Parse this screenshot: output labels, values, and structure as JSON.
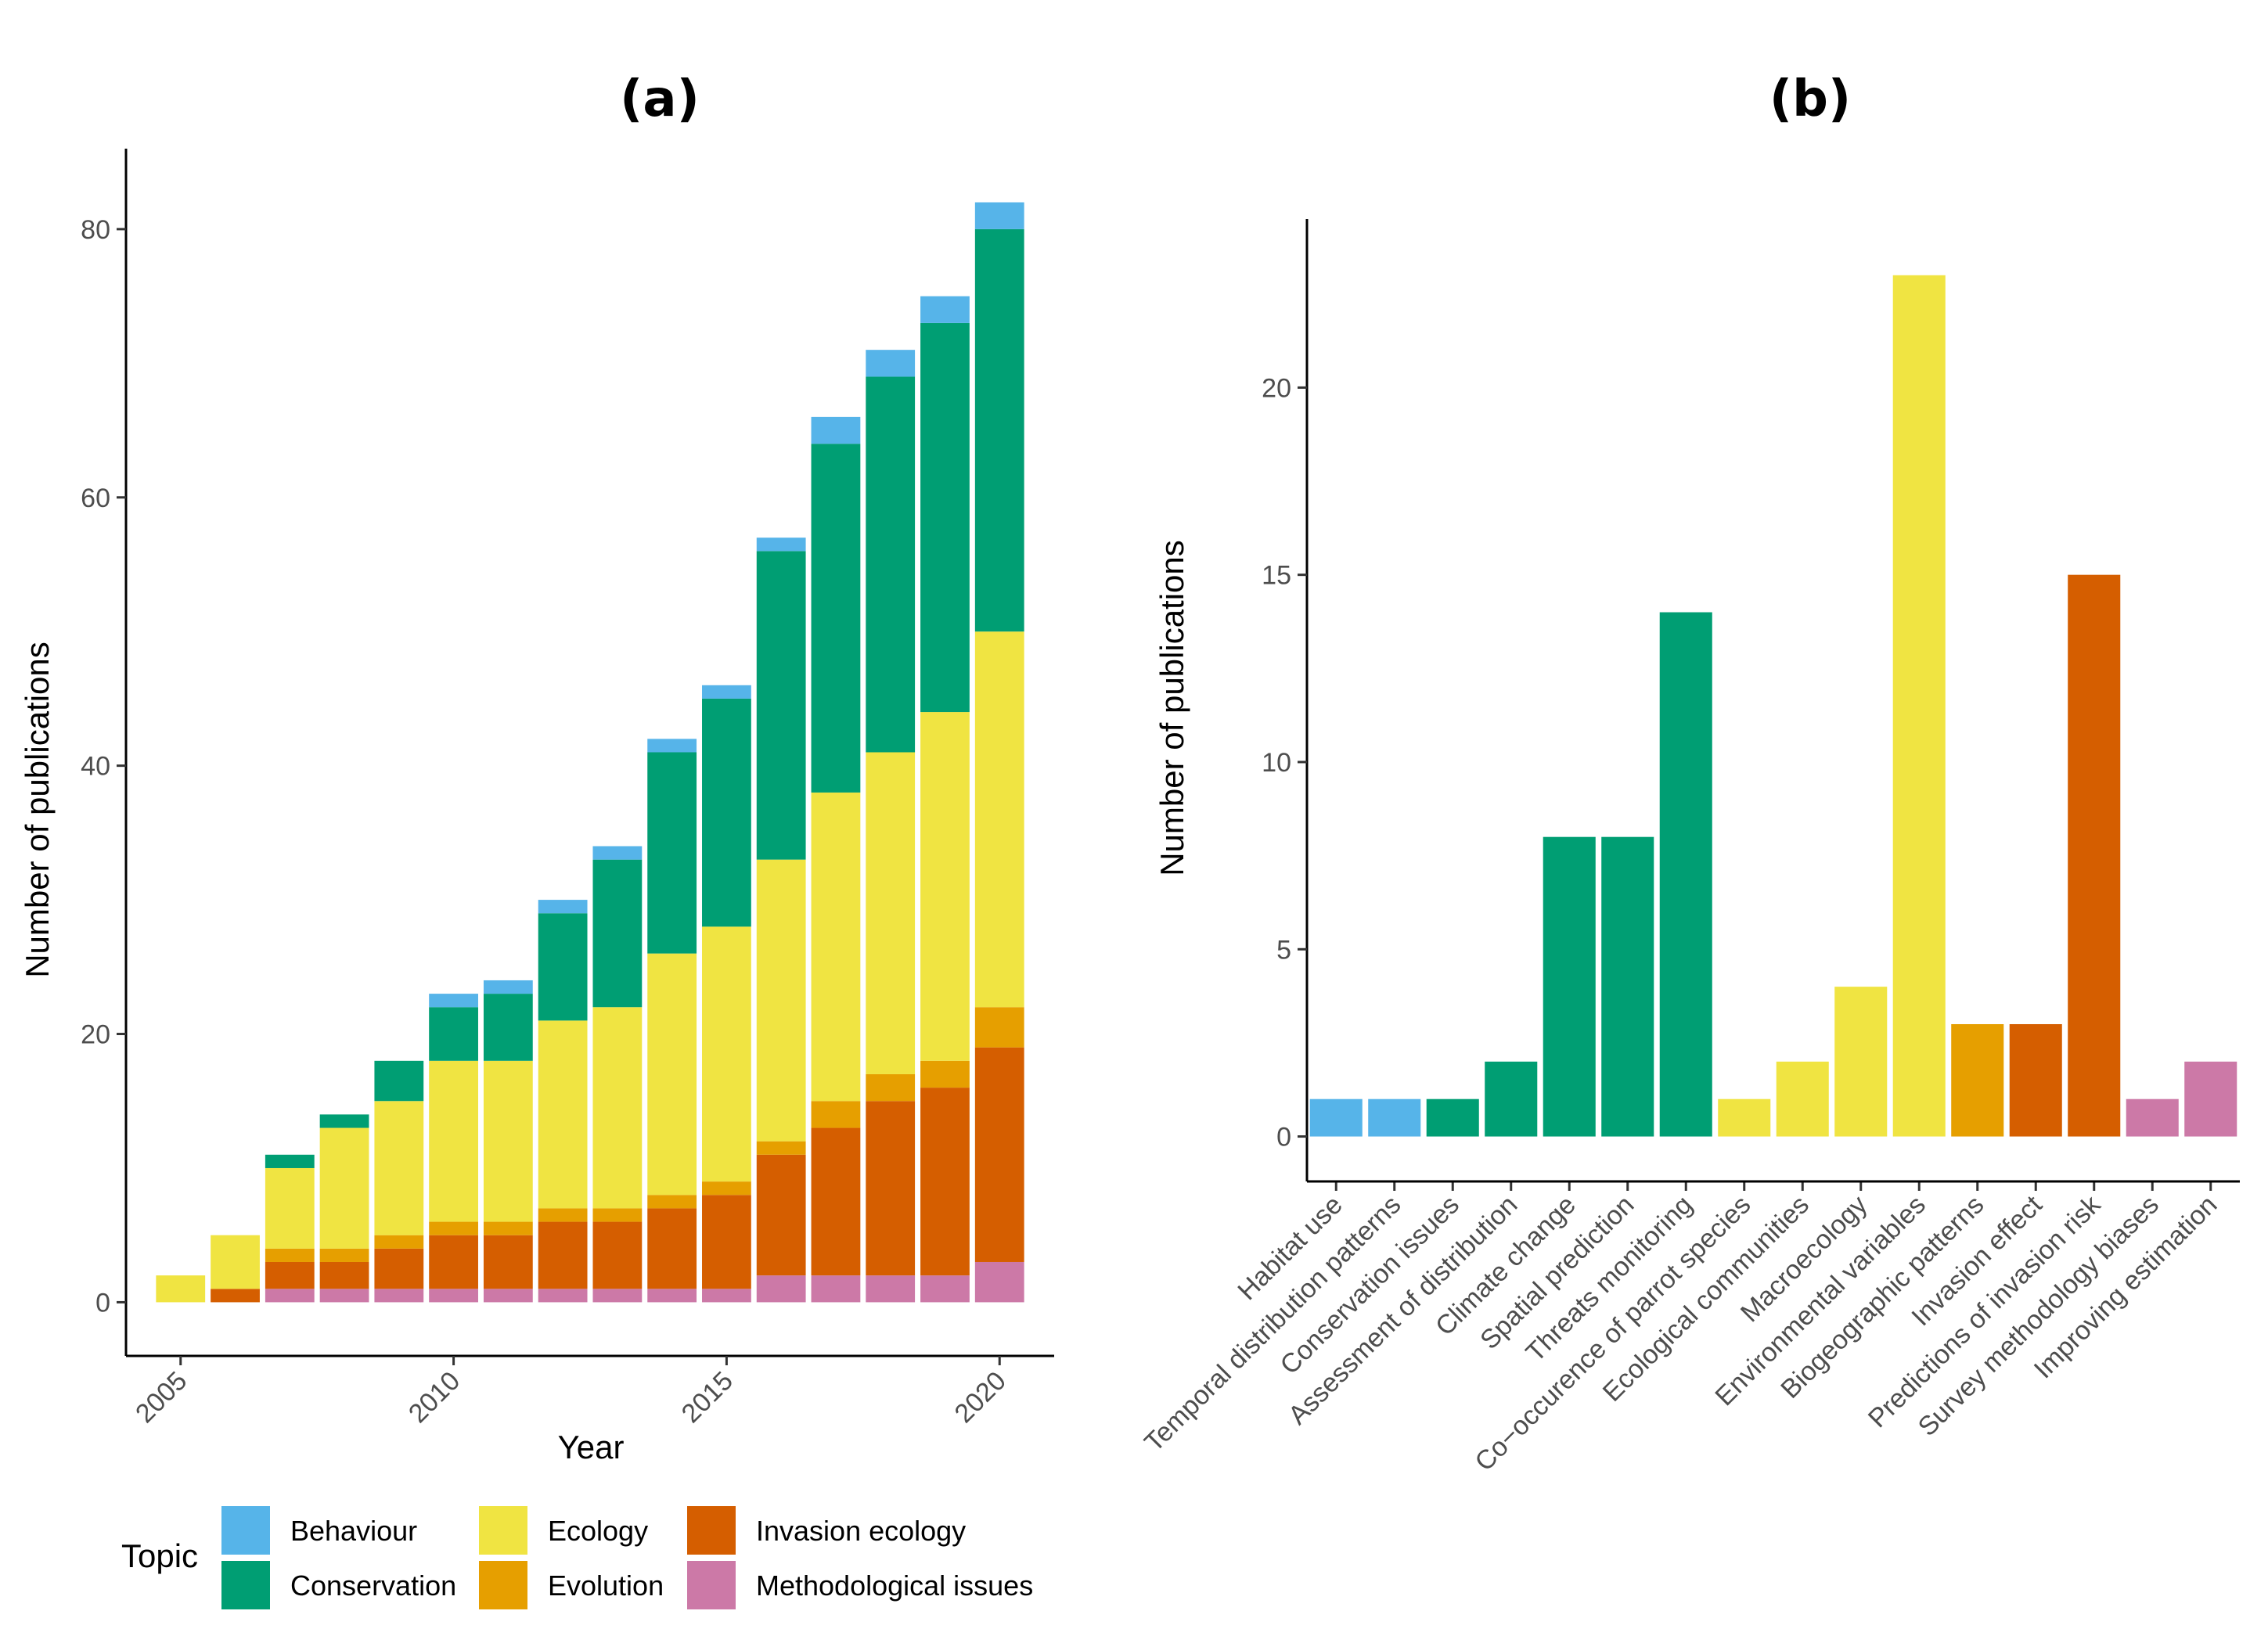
{
  "colors": {
    "Behaviour": "#56B4E9",
    "Conservation": "#009E73",
    "Ecology": "#F0E442",
    "Evolution": "#E69F00",
    "Invasion ecology": "#D55E00",
    "Methodological issues": "#CC79A7"
  },
  "chart_data": [
    {
      "type": "bar",
      "stacked": true,
      "title": "(a)",
      "xlabel": "Year",
      "ylabel": "Number of publications",
      "x": [
        2005,
        2006,
        2007,
        2008,
        2009,
        2010,
        2011,
        2012,
        2013,
        2014,
        2015,
        2016,
        2017,
        2018,
        2019,
        2020
      ],
      "x_ticks": [
        2005,
        2010,
        2015,
        2020
      ],
      "xlim": [
        2004,
        2021
      ],
      "ylim": [
        -4,
        86
      ],
      "y_ticks": [
        0,
        20,
        40,
        60,
        80
      ],
      "series": [
        {
          "name": "Methodological issues",
          "values": [
            0,
            0,
            1,
            1,
            1,
            1,
            1,
            1,
            1,
            1,
            1,
            2,
            2,
            2,
            2,
            3
          ]
        },
        {
          "name": "Invasion ecology",
          "values": [
            0,
            1,
            2,
            2,
            3,
            4,
            4,
            5,
            5,
            6,
            7,
            9,
            11,
            13,
            14,
            16
          ]
        },
        {
          "name": "Evolution",
          "values": [
            0,
            0,
            1,
            1,
            1,
            1,
            1,
            1,
            1,
            1,
            1,
            1,
            2,
            2,
            2,
            3
          ]
        },
        {
          "name": "Ecology",
          "values": [
            2,
            4,
            6,
            9,
            10,
            12,
            12,
            14,
            15,
            18,
            19,
            21,
            23,
            24,
            26,
            28
          ]
        },
        {
          "name": "Conservation",
          "values": [
            0,
            0,
            1,
            1,
            3,
            4,
            5,
            8,
            11,
            15,
            17,
            23,
            26,
            28,
            29,
            30
          ]
        },
        {
          "name": "Behaviour",
          "values": [
            0,
            0,
            0,
            0,
            0,
            1,
            1,
            1,
            1,
            1,
            1,
            1,
            2,
            2,
            2,
            2
          ]
        }
      ],
      "legend": {
        "title": "Topic",
        "position": "bottom",
        "entries": [
          "Behaviour",
          "Conservation",
          "Ecology",
          "Evolution",
          "Invasion ecology",
          "Methodological issues"
        ]
      }
    },
    {
      "type": "bar",
      "title": "(b)",
      "xlabel": "",
      "ylabel": "Number of publications",
      "ylim": [
        -1.2,
        24.5
      ],
      "y_ticks": [
        0,
        5,
        10,
        15,
        20
      ],
      "categories": [
        "Habitat use",
        "Temporal distribution patterns",
        "Conservation issues",
        "Assessment of distribution",
        "Climate change",
        "Spatial prediction",
        "Threats monitoring",
        "Co−occurence of parrot species",
        "Ecological communities",
        "Macroecology",
        "Environmental variables",
        "Biogeographic patterns",
        "Invasion effect",
        "Predictions of invasion risk",
        "Survey methodology biases",
        "Improving estimation"
      ],
      "values": [
        1,
        1,
        1,
        2,
        8,
        8,
        14,
        1,
        2,
        4,
        23,
        3,
        3,
        15,
        1,
        2
      ],
      "topics": [
        "Behaviour",
        "Behaviour",
        "Conservation",
        "Conservation",
        "Conservation",
        "Conservation",
        "Conservation",
        "Ecology",
        "Ecology",
        "Ecology",
        "Ecology",
        "Evolution",
        "Invasion ecology",
        "Invasion ecology",
        "Methodological issues",
        "Methodological issues"
      ]
    }
  ]
}
